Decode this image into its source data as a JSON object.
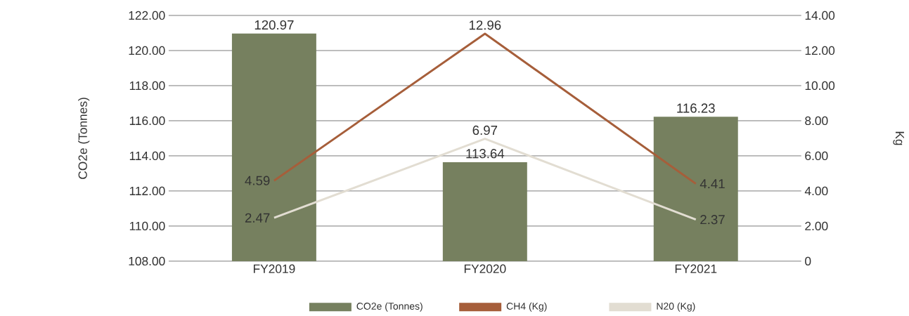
{
  "chart_data": {
    "type": "bar",
    "categories": [
      "FY2019",
      "FY2020",
      "FY2021"
    ],
    "ylabel": "CO2e (Tonnes)",
    "y2label": "Kg",
    "ylim": [
      108,
      122
    ],
    "yticks": [
      {
        "value": 108,
        "label": "108.00"
      },
      {
        "value": 110,
        "label": "110.00"
      },
      {
        "value": 112,
        "label": "112.00"
      },
      {
        "value": 114,
        "label": "114.00"
      },
      {
        "value": 116,
        "label": "116.00"
      },
      {
        "value": 118,
        "label": "118.00"
      },
      {
        "value": 120,
        "label": "120.00"
      },
      {
        "value": 122,
        "label": "122.00"
      }
    ],
    "y2lim": [
      0,
      14
    ],
    "y2ticks": [
      0,
      {
        "value": 2,
        "label": "2.00"
      },
      {
        "value": 4,
        "label": "4.00"
      },
      {
        "value": 6,
        "label": "6.00"
      },
      {
        "value": 8,
        "label": "8.00"
      },
      {
        "value": 10,
        "label": "10.00"
      },
      {
        "value": 12,
        "label": "12.00"
      },
      {
        "value": 14,
        "label": "14.00"
      }
    ],
    "series": [
      {
        "name": "CO2e (Tonnes)",
        "color": "#76805f",
        "values": [
          120.97,
          113.64,
          116.23
        ]
      },
      {
        "name": "CH4 (Kg)",
        "type": "line",
        "axis": "y2",
        "color": "#a65e3a",
        "values": [
          4.59,
          12.96,
          4.41
        ]
      },
      {
        "name": "N20 (Kg)",
        "type": "line",
        "axis": "y2",
        "color": "#e2ddd2",
        "values": [
          2.47,
          6.97,
          2.37
        ]
      }
    ],
    "data_labels": true,
    "grid": "y",
    "legend": "bottom"
  }
}
